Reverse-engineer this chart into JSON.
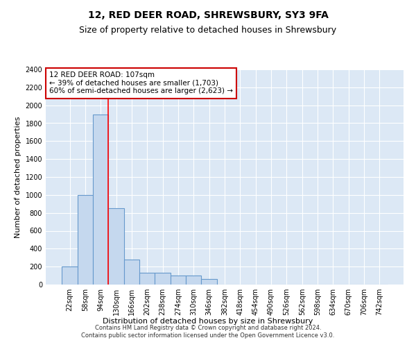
{
  "title": "12, RED DEER ROAD, SHREWSBURY, SY3 9FA",
  "subtitle": "Size of property relative to detached houses in Shrewsbury",
  "xlabel": "Distribution of detached houses by size in Shrewsbury",
  "ylabel": "Number of detached properties",
  "bin_labels": [
    "22sqm",
    "58sqm",
    "94sqm",
    "130sqm",
    "166sqm",
    "202sqm",
    "238sqm",
    "274sqm",
    "310sqm",
    "346sqm",
    "382sqm",
    "418sqm",
    "454sqm",
    "490sqm",
    "526sqm",
    "562sqm",
    "598sqm",
    "634sqm",
    "670sqm",
    "706sqm",
    "742sqm"
  ],
  "bar_heights": [
    200,
    1000,
    1900,
    850,
    280,
    130,
    130,
    100,
    100,
    65,
    0,
    0,
    0,
    0,
    0,
    0,
    0,
    0,
    0,
    0,
    0
  ],
  "bar_color": "#c5d8ee",
  "bar_edgecolor": "#6699cc",
  "bar_linewidth": 0.8,
  "red_line_x": 2.5,
  "annotation_text": "12 RED DEER ROAD: 107sqm\n← 39% of detached houses are smaller (1,703)\n60% of semi-detached houses are larger (2,623) →",
  "annotation_box_color": "#ffffff",
  "annotation_box_edgecolor": "#cc0000",
  "ylim": [
    0,
    2400
  ],
  "yticks": [
    0,
    200,
    400,
    600,
    800,
    1000,
    1200,
    1400,
    1600,
    1800,
    2000,
    2200,
    2400
  ],
  "background_color": "#dce8f5",
  "footer_line1": "Contains HM Land Registry data © Crown copyright and database right 2024.",
  "footer_line2": "Contains public sector information licensed under the Open Government Licence v3.0.",
  "title_fontsize": 10,
  "subtitle_fontsize": 9,
  "tick_fontsize": 7,
  "ylabel_fontsize": 8,
  "xlabel_fontsize": 8,
  "annotation_fontsize": 7.5,
  "footer_fontsize": 6
}
